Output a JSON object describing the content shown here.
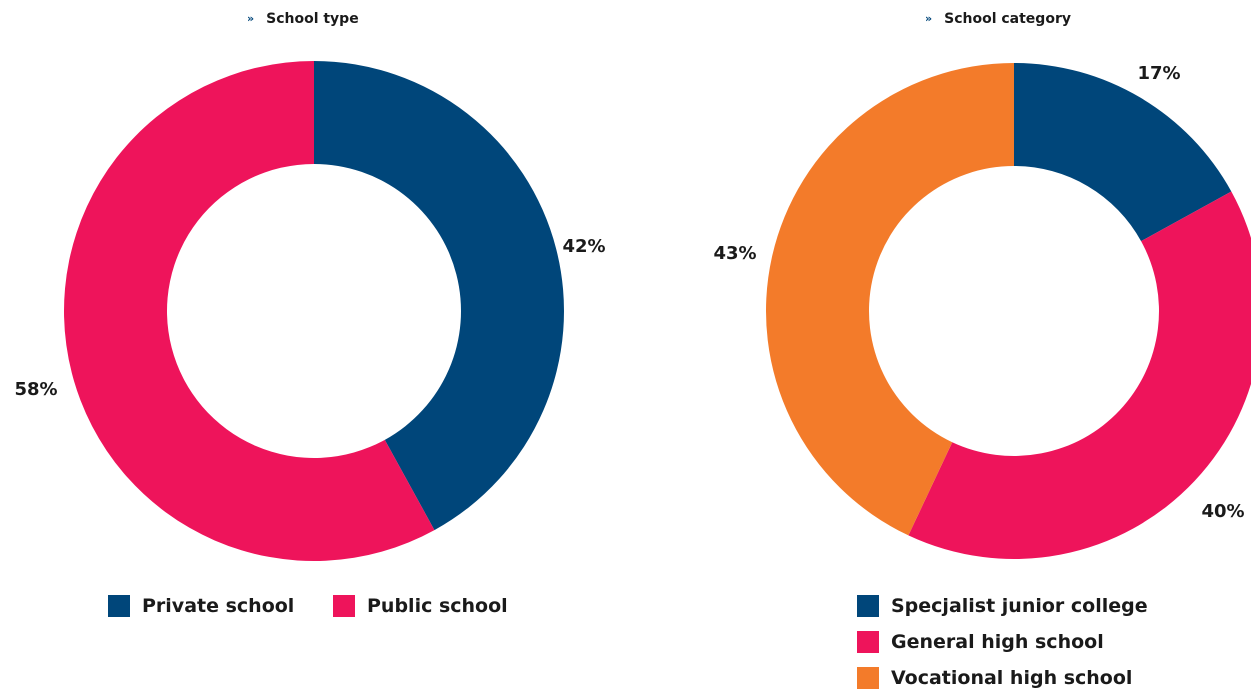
{
  "colors": {
    "navy": "#00467a",
    "pink": "#ee145b",
    "orange": "#f37b2a"
  },
  "chart_data": [
    {
      "type": "pie",
      "title": "School type",
      "slices": [
        {
          "label": "Private school",
          "value": 42,
          "display": "42%",
          "color": "#00467a"
        },
        {
          "label": "Public school",
          "value": 58,
          "display": "58%",
          "color": "#ee145b"
        }
      ],
      "legend": "bottom"
    },
    {
      "type": "pie",
      "title": "School category",
      "slices": [
        {
          "label": "Specjalist junior college",
          "value": 17,
          "display": "17%",
          "color": "#00467a"
        },
        {
          "label": "General high school",
          "value": 40,
          "display": "40%",
          "color": "#ee145b"
        },
        {
          "label": "Vocational high school",
          "value": 43,
          "display": "43%",
          "color": "#f37b2a"
        }
      ],
      "legend": "bottom"
    }
  ]
}
